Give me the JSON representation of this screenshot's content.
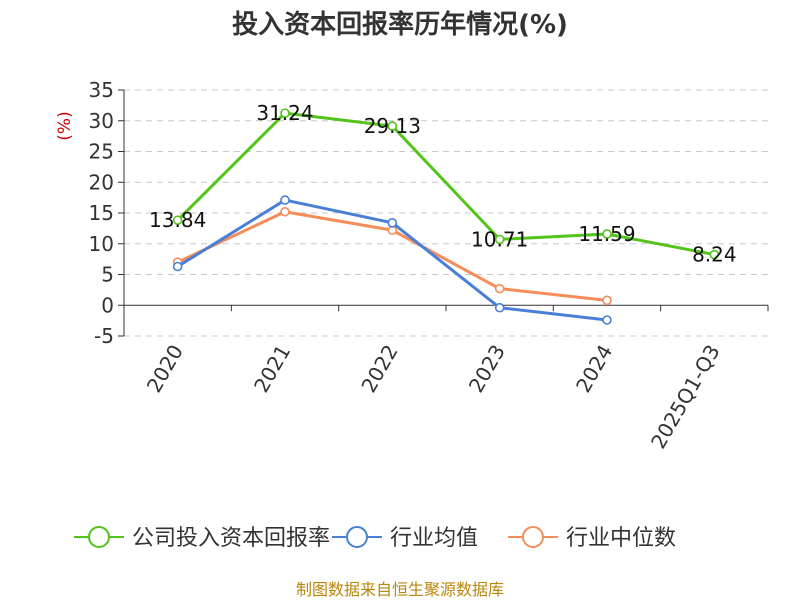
{
  "chart_data": {
    "type": "line",
    "title": "投入资本回报率历年情况(%)",
    "ylabel": "(%)",
    "categories": [
      "2020",
      "2021",
      "2022",
      "2023",
      "2024",
      "2025Q1-Q3"
    ],
    "ylim": [
      -5,
      35
    ],
    "yticks": [
      35,
      30,
      25,
      20,
      15,
      10,
      5,
      0,
      -5
    ],
    "grid": true,
    "legend_position": "bottom",
    "series": [
      {
        "name": "公司投入资本回报率",
        "color": "#52c41a",
        "values": [
          13.84,
          31.24,
          29.13,
          10.71,
          11.59,
          8.24
        ],
        "labels": [
          "13.84",
          "31.24",
          "29.13",
          "10.71",
          "11.59",
          "8.24"
        ]
      },
      {
        "name": "行业均值",
        "color": "#4a7fd8",
        "values": [
          6.3,
          17.1,
          13.4,
          -0.4,
          -2.4,
          null
        ]
      },
      {
        "name": "行业中位数",
        "color": "#f58d5a",
        "values": [
          7.0,
          15.2,
          12.2,
          2.7,
          0.8,
          null
        ]
      }
    ]
  },
  "source": "制图数据来自恒生聚源数据库"
}
